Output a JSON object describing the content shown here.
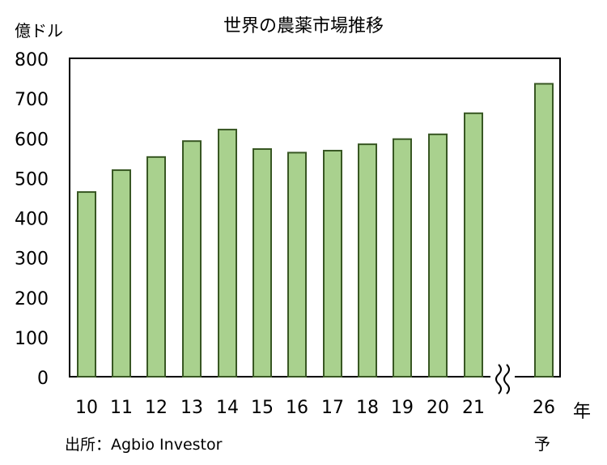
{
  "title": "世界の農薬市場推移",
  "y_unit_label": "億ドル",
  "x_unit_label": "年",
  "forecast_label": "予",
  "source": "出所：Agbio Investor",
  "colors": {
    "bar_fill": "#a9d18e",
    "bar_stroke": "#385723",
    "axis": "#000000"
  },
  "chart_data": {
    "type": "bar",
    "title": "世界の農薬市場推移",
    "ylabel": "億ドル",
    "xlabel": "年",
    "ylim": [
      0,
      800
    ],
    "yticks": [
      0,
      100,
      200,
      300,
      400,
      500,
      600,
      700,
      800
    ],
    "categories": [
      "10",
      "11",
      "12",
      "13",
      "14",
      "15",
      "16",
      "17",
      "18",
      "19",
      "20",
      "21",
      "26"
    ],
    "values": [
      464,
      519,
      552,
      592,
      621,
      572,
      563,
      568,
      584,
      597,
      609,
      662,
      736
    ],
    "axis_break_between": [
      "21",
      "26"
    ],
    "forecast_categories": [
      "26"
    ],
    "grid": false,
    "legend": "none"
  }
}
